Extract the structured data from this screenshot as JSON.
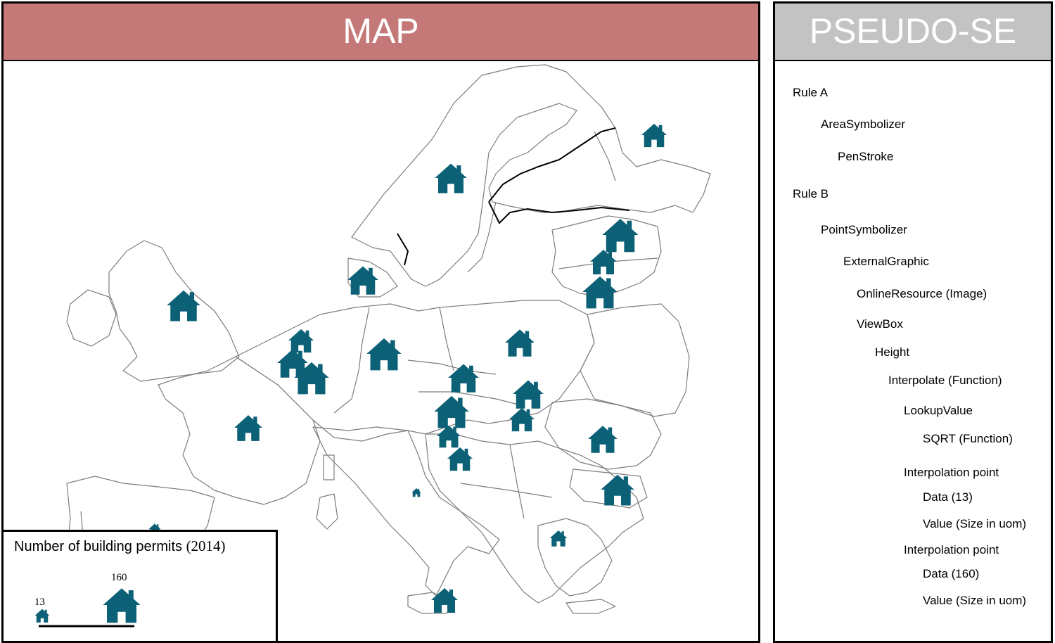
{
  "map_panel": {
    "title": "MAP",
    "header_color": "#c47878",
    "symbol_icon": "house-icon",
    "symbol_color": "#0c6177"
  },
  "legend": {
    "title": "Number of building permits",
    "year": "(2014)",
    "min_label": "13",
    "max_label": "160"
  },
  "se_panel": {
    "title": "PSEUDO-SE",
    "header_color": "#c3c3c3",
    "items": [
      "Rule A",
      "AreaSymbolizer",
      "PenStroke",
      "Rule B",
      "PointSymbolizer",
      "ExternalGraphic",
      "OnlineResource (Image)",
      "ViewBox",
      "Height",
      "Interpolate (Function)",
      "LookupValue",
      "SQRT (Function)",
      "Interpolation point",
      "Data (13)",
      "Value (Size in uom)",
      "Interpolation point",
      "Data (160)",
      "Value (Size in uom)"
    ]
  }
}
